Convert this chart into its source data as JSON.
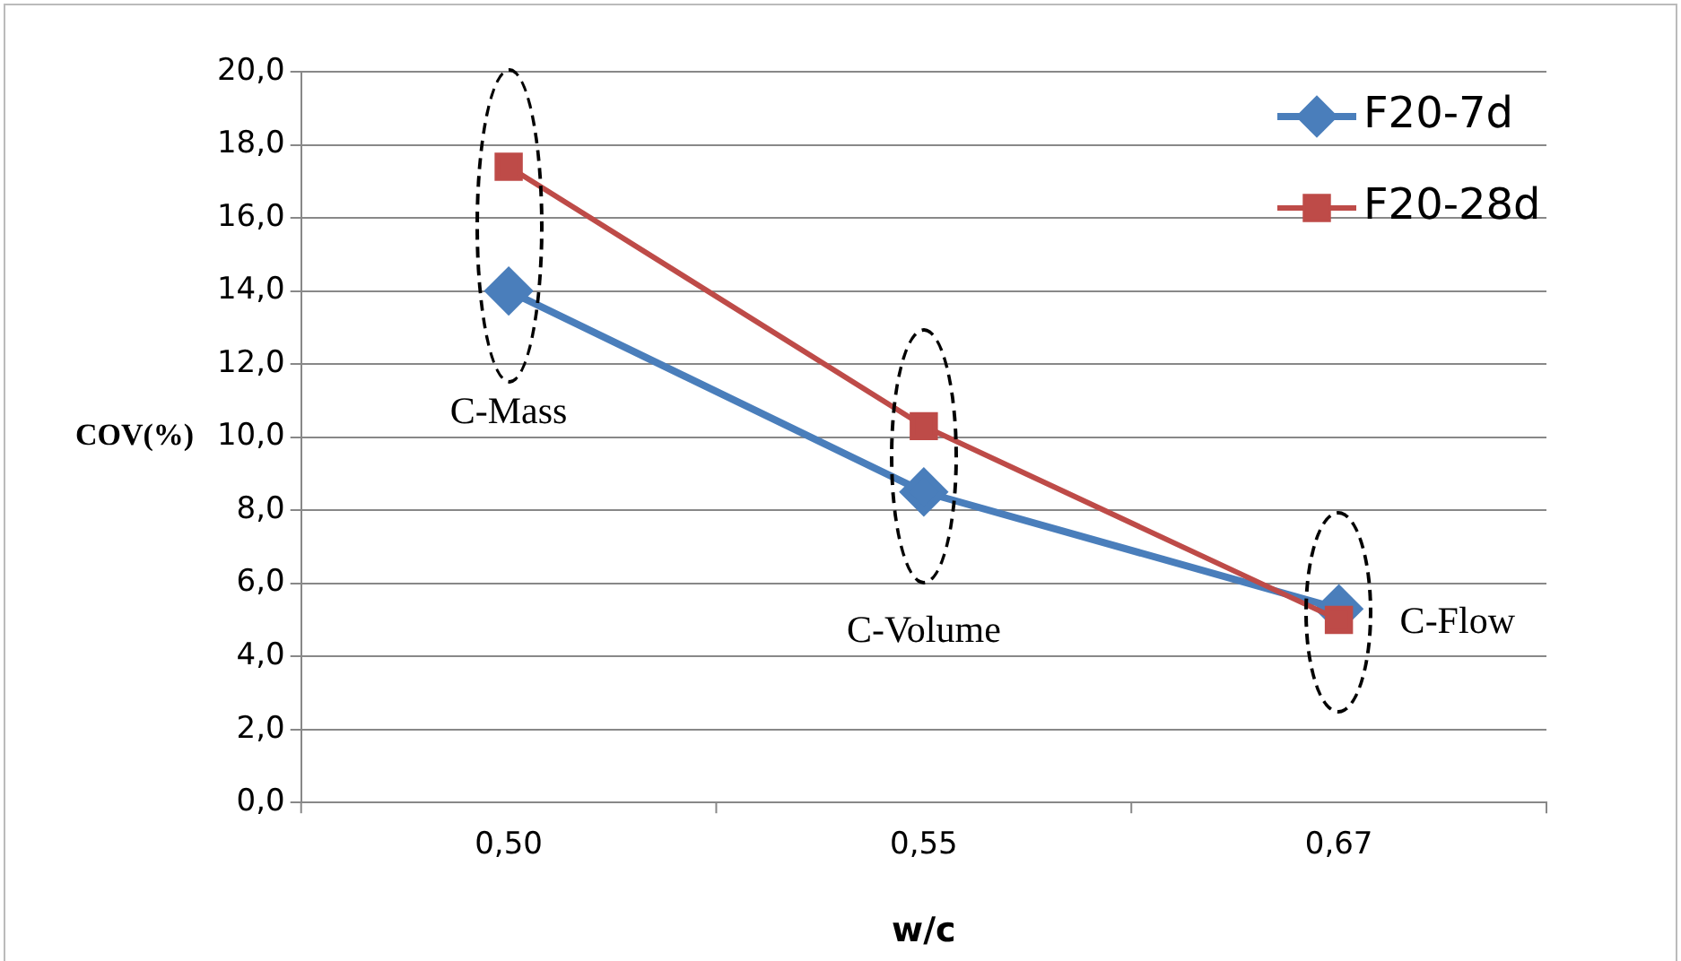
{
  "chart_data": {
    "type": "line",
    "ylabel": "COV(%)",
    "xlabel": "w/c",
    "categories": [
      "0,50",
      "0,55",
      "0,67"
    ],
    "series": [
      {
        "name": "F20-7d",
        "color": "#4a7ebb",
        "values": [
          14.0,
          8.5,
          5.3
        ],
        "marker": "diamond"
      },
      {
        "name": "F20-28d",
        "color": "#be4b48",
        "values": [
          17.4,
          10.3,
          5.0
        ],
        "marker": "square"
      }
    ],
    "ylim": [
      0,
      20
    ],
    "yticks": [
      {
        "value": 0,
        "label": "0,0"
      },
      {
        "value": 2,
        "label": "2,0"
      },
      {
        "value": 4,
        "label": "4,0"
      },
      {
        "value": 6,
        "label": "6,0"
      },
      {
        "value": 8,
        "label": "8,0"
      },
      {
        "value": 10,
        "label": "10,0"
      },
      {
        "value": 12,
        "label": "12,0"
      },
      {
        "value": 14,
        "label": "14,0"
      },
      {
        "value": 16,
        "label": "16,0"
      },
      {
        "value": 18,
        "label": "18,0"
      },
      {
        "value": 20,
        "label": "20,0"
      }
    ],
    "grid": "y",
    "legend": "top right",
    "line_style": "solid",
    "annotations": [
      "C-Mass",
      "C-Volume",
      "C-Flow"
    ]
  }
}
